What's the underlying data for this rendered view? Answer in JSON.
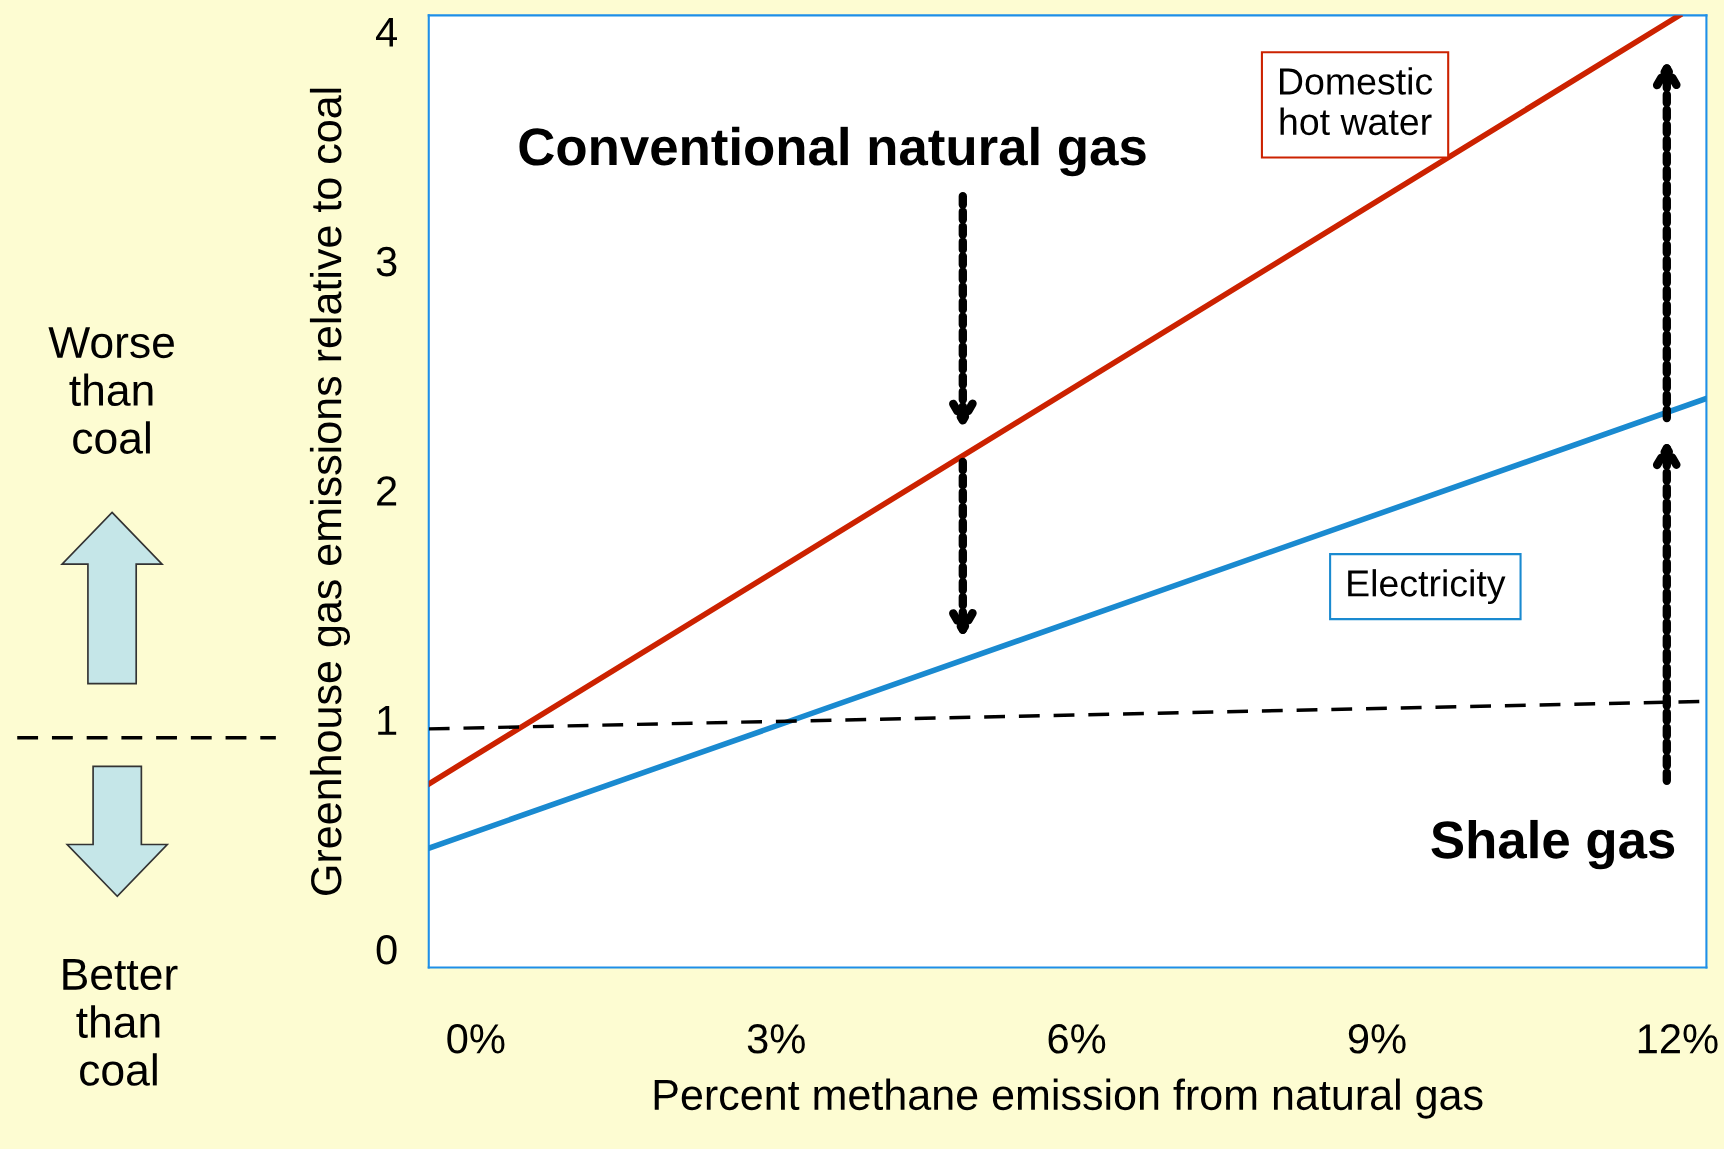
{
  "chart_data": {
    "type": "line",
    "xlabel": "Percent methane emission from natural gas",
    "ylabel": "Greenhouse gas emissions relative to coal",
    "series": [
      {
        "name": "Domestic\nhot water",
        "color": "#cc2200",
        "x": [
          -0.47,
          12.02
        ],
        "values": [
          0.72,
          4.07
        ]
      },
      {
        "name": "Electricity",
        "color": "#1a8ad0",
        "x": [
          -0.47,
          12.29
        ],
        "values": [
          0.44,
          2.4
        ]
      },
      {
        "color": "#000000",
        "x": [
          -0.47,
          12.29
        ],
        "values": [
          0.96,
          1.08
        ],
        "line_style": "dashed"
      }
    ],
    "xlim": [
      -0.47,
      12.29
    ],
    "ylim": [
      -0.08,
      4.07
    ],
    "xticks": [
      {
        "value": 0,
        "label": "0%"
      },
      {
        "value": 3,
        "label": "3%"
      },
      {
        "value": 6,
        "label": "6%"
      },
      {
        "value": 9,
        "label": "9%"
      },
      {
        "value": 12,
        "label": "12%"
      }
    ],
    "yticks": [
      0,
      1,
      2,
      3,
      4
    ],
    "annotations": [
      "Worse\nthan\ncoal",
      "Better\nthan\ncoal",
      "Conventional natural gas",
      "Shale gas"
    ],
    "grid": false,
    "legend": false,
    "marker": "none",
    "line_style": "solid"
  }
}
